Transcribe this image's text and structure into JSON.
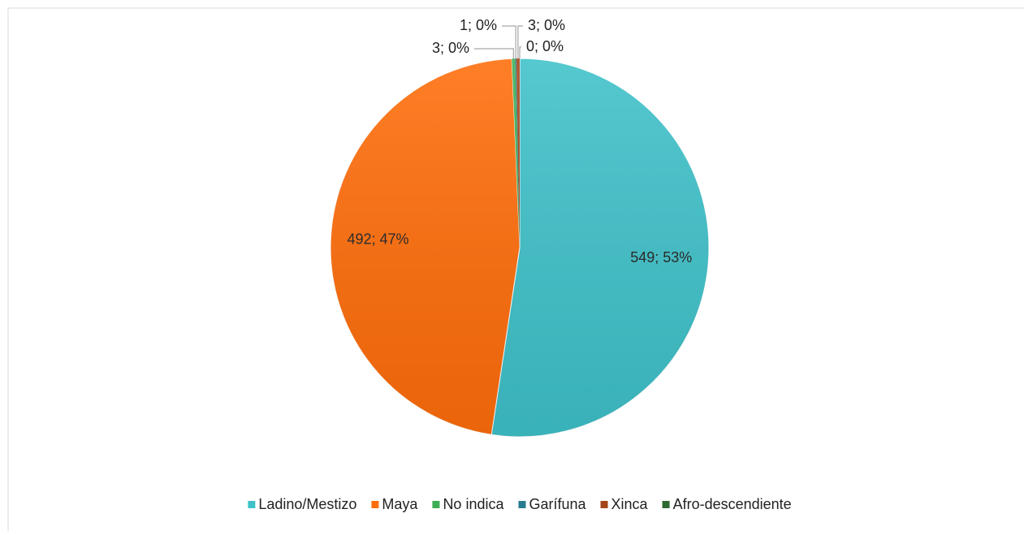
{
  "chart_data": {
    "type": "pie",
    "categories": [
      "Ladino/Mestizo",
      "Maya",
      "No indica",
      "Garífuna",
      "Xinca",
      "Afro-descendiente"
    ],
    "values": [
      549,
      492,
      3,
      1,
      3,
      0
    ],
    "value_labels": [
      "549; 53%",
      "492; 47%",
      "3; 0%",
      "1; 0%",
      "3; 0%",
      "0; 0%"
    ],
    "colors": [
      "#3fc1c9",
      "#ff6d0a",
      "#3caf55",
      "#287c8e",
      "#a5451a",
      "#2d6a2f"
    ],
    "legend": "bottom"
  }
}
